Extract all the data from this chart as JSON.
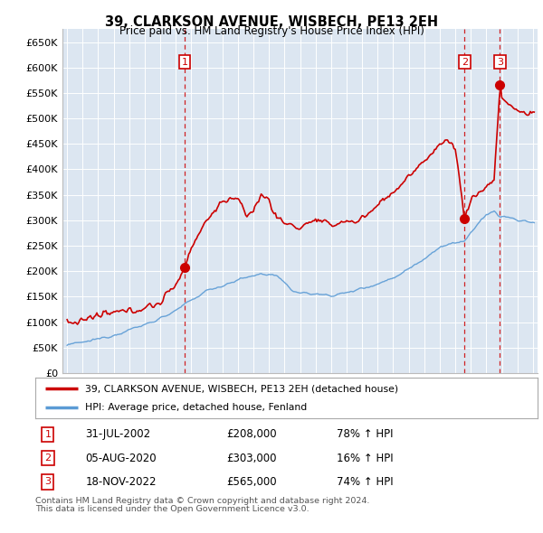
{
  "title": "39, CLARKSON AVENUE, WISBECH, PE13 2EH",
  "subtitle": "Price paid vs. HM Land Registry's House Price Index (HPI)",
  "bg_color": "#dce6f1",
  "red_line_color": "#cc0000",
  "blue_line_color": "#5b9bd5",
  "sales": [
    {
      "num": 1,
      "date_num": 2002.58,
      "price": 208000,
      "label": "31-JUL-2002",
      "price_str": "£208,000",
      "pct": "78% ↑ HPI"
    },
    {
      "num": 2,
      "date_num": 2020.59,
      "price": 303000,
      "label": "05-AUG-2020",
      "price_str": "£303,000",
      "pct": "16% ↑ HPI"
    },
    {
      "num": 3,
      "date_num": 2022.88,
      "price": 565000,
      "label": "18-NOV-2022",
      "price_str": "£565,000",
      "pct": "74% ↑ HPI"
    }
  ],
  "legend_line1": "39, CLARKSON AVENUE, WISBECH, PE13 2EH (detached house)",
  "legend_line2": "HPI: Average price, detached house, Fenland",
  "footer1": "Contains HM Land Registry data © Crown copyright and database right 2024.",
  "footer2": "This data is licensed under the Open Government Licence v3.0.",
  "ylim": [
    0,
    675000
  ],
  "yticks": [
    0,
    50000,
    100000,
    150000,
    200000,
    250000,
    300000,
    350000,
    400000,
    450000,
    500000,
    550000,
    600000,
    650000
  ],
  "xlim_start": 1994.7,
  "xlim_end": 2025.3
}
